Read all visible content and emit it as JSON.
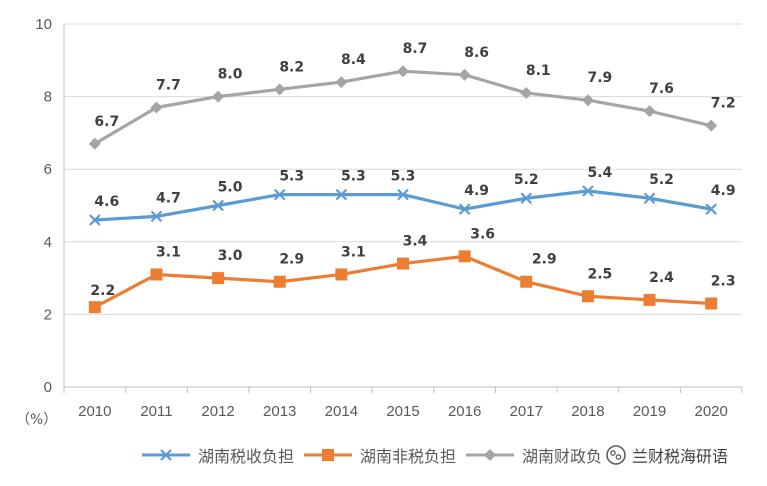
{
  "chart_data": {
    "type": "line",
    "title": "",
    "xlabel": "",
    "ylabel": "",
    "unit_label": "（%）",
    "x": [
      "2010",
      "2011",
      "2012",
      "2013",
      "2014",
      "2015",
      "2016",
      "2017",
      "2018",
      "2019",
      "2020"
    ],
    "ylim": [
      0,
      10
    ],
    "yticks": [
      "0",
      "2",
      "4",
      "6",
      "8",
      "10"
    ],
    "grid": true,
    "legend_position": "bottom",
    "series": [
      {
        "name": "湖南税收负担",
        "color": "#5B9BD5",
        "marker": "x",
        "values": [
          4.6,
          4.7,
          5.0,
          5.3,
          5.3,
          5.3,
          4.9,
          5.2,
          5.4,
          5.2,
          4.9
        ],
        "labels": [
          "4.6",
          "4.7",
          "5.0",
          "5.3",
          "5.3",
          "5.3",
          "4.9",
          "5.2",
          "5.4",
          "5.2",
          "4.9"
        ]
      },
      {
        "name": "湖南非税负担",
        "color": "#ED7D31",
        "marker": "square",
        "values": [
          2.2,
          3.1,
          3.0,
          2.9,
          3.1,
          3.4,
          3.6,
          2.9,
          2.5,
          2.4,
          2.3
        ],
        "labels": [
          "2.2",
          "3.1",
          "3.0",
          "2.9",
          "3.1",
          "3.4",
          "3.6",
          "2.9",
          "2.5",
          "2.4",
          "2.3"
        ]
      },
      {
        "name": "湖南财政负担",
        "legend_text": "湖南财政负",
        "color": "#A5A5A5",
        "marker": "diamond",
        "values": [
          6.7,
          7.7,
          8.0,
          8.2,
          8.4,
          8.7,
          8.6,
          8.1,
          7.9,
          7.6,
          7.2
        ],
        "labels": [
          "6.7",
          "7.7",
          "8.0",
          "8.2",
          "8.4",
          "8.7",
          "8.6",
          "8.1",
          "7.9",
          "7.6",
          "7.2"
        ]
      }
    ]
  },
  "watermark": {
    "text": "兰财税海研语",
    "icon": "wechat-logo-icon"
  }
}
